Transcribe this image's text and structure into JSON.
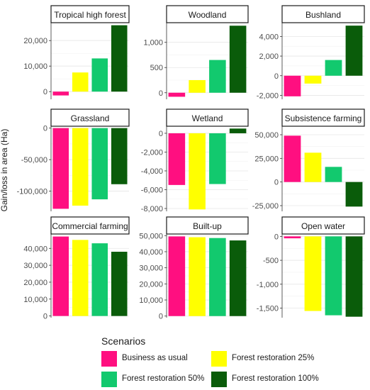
{
  "figure": {
    "ylabel": "Gain/loss in area (Ha)"
  },
  "legend": {
    "title": "Scenarios",
    "items": [
      {
        "label": "Business as usual",
        "color": "#ff0f80"
      },
      {
        "label": "Forest restoration 25%",
        "color": "#ffff00"
      },
      {
        "label": "Forest restoration 50%",
        "color": "#12c96e"
      },
      {
        "label": "Forest restoration 100%",
        "color": "#0a5c0a"
      }
    ]
  },
  "chart_data": [
    {
      "type": "bar",
      "title": "Tropical high forest",
      "categories": [
        "Business as usual",
        "Forest restoration 25%",
        "Forest restoration 50%",
        "Forest restoration 100%"
      ],
      "values": [
        -1500,
        7500,
        13000,
        26000
      ],
      "ylim": [
        -3000,
        27000
      ],
      "ticks": [
        0,
        10000,
        20000
      ],
      "tick_labels": [
        "0",
        "10,000",
        "20,000"
      ],
      "grid": true
    },
    {
      "type": "bar",
      "title": "Woodland",
      "categories": [
        "Business as usual",
        "Forest restoration 25%",
        "Forest restoration 50%",
        "Forest restoration 100%"
      ],
      "values": [
        -80,
        250,
        650,
        1330
      ],
      "ylim": [
        -130,
        1390
      ],
      "ticks": [
        0,
        500,
        1000
      ],
      "tick_labels": [
        "0",
        "500",
        "1,000"
      ],
      "grid": true
    },
    {
      "type": "bar",
      "title": "Bushland",
      "categories": [
        "Business as usual",
        "Forest restoration 25%",
        "Forest restoration 50%",
        "Forest restoration 100%"
      ],
      "values": [
        -2100,
        -800,
        1600,
        5100
      ],
      "ylim": [
        -2400,
        5400
      ],
      "ticks": [
        -2000,
        0,
        2000,
        4000
      ],
      "tick_labels": [
        "-2,000",
        "0",
        "2,000",
        "4,000"
      ],
      "grid": true
    },
    {
      "type": "bar",
      "title": "Grassland",
      "categories": [
        "Business as usual",
        "Forest restoration 25%",
        "Forest restoration 50%",
        "Forest restoration 100%"
      ],
      "values": [
        -128000,
        -123000,
        -113000,
        -89000
      ],
      "ylim": [
        -132000,
        3000
      ],
      "ticks": [
        -100000,
        -50000,
        0
      ],
      "tick_labels": [
        "-100,000",
        "-50,000",
        "0"
      ],
      "grid": true
    },
    {
      "type": "bar",
      "title": "Wetland",
      "categories": [
        "Business as usual",
        "Forest restoration 25%",
        "Forest restoration 50%",
        "Forest restoration 100%"
      ],
      "values": [
        -5500,
        -8100,
        -5400,
        500
      ],
      "ylim": [
        -8300,
        750
      ],
      "ticks": [
        -8000,
        -6000,
        -4000,
        -2000,
        0
      ],
      "tick_labels": [
        "-8,000",
        "-6,000",
        "-4,000",
        "-2,000",
        "0"
      ],
      "grid": true
    },
    {
      "type": "bar",
      "title": "Subsistence farming",
      "categories": [
        "Business as usual",
        "Forest restoration 25%",
        "Forest restoration 50%",
        "Forest restoration 100%"
      ],
      "values": [
        49000,
        31000,
        16000,
        -26000
      ],
      "ylim": [
        -31000,
        59000
      ],
      "ticks": [
        -25000,
        0,
        25000,
        50000
      ],
      "tick_labels": [
        "-25,000",
        "0",
        "25,000",
        "50,000"
      ],
      "grid": true
    },
    {
      "type": "bar",
      "title": "Commercial farming",
      "categories": [
        "Business as usual",
        "Forest restoration 25%",
        "Forest restoration 50%",
        "Forest restoration 100%"
      ],
      "values": [
        47000,
        45000,
        43000,
        38000
      ],
      "ylim": [
        -1000,
        48500
      ],
      "ticks": [
        0,
        10000,
        20000,
        30000,
        40000
      ],
      "tick_labels": [
        "0",
        "10,000",
        "20,000",
        "30,000",
        "40,000"
      ],
      "grid": true
    },
    {
      "type": "bar",
      "title": "Built-up",
      "categories": [
        "Business as usual",
        "Forest restoration 25%",
        "Forest restoration 50%",
        "Forest restoration 100%"
      ],
      "values": [
        49500,
        49000,
        48500,
        47000
      ],
      "ylim": [
        -1000,
        51000
      ],
      "ticks": [
        0,
        10000,
        20000,
        30000,
        40000,
        50000
      ],
      "tick_labels": [
        "0",
        "10,000",
        "20,000",
        "30,000",
        "40,000",
        "50,000"
      ],
      "grid": true
    },
    {
      "type": "bar",
      "title": "Open water",
      "categories": [
        "Business as usual",
        "Forest restoration 25%",
        "Forest restoration 50%",
        "Forest restoration 100%"
      ],
      "values": [
        -40,
        -1560,
        -1650,
        -1680
      ],
      "ylim": [
        -1700,
        50
      ],
      "ticks": [
        -1500,
        -1000,
        -500,
        0
      ],
      "tick_labels": [
        "-1,500",
        "-1,000",
        "-500",
        "0"
      ],
      "grid": true
    }
  ]
}
